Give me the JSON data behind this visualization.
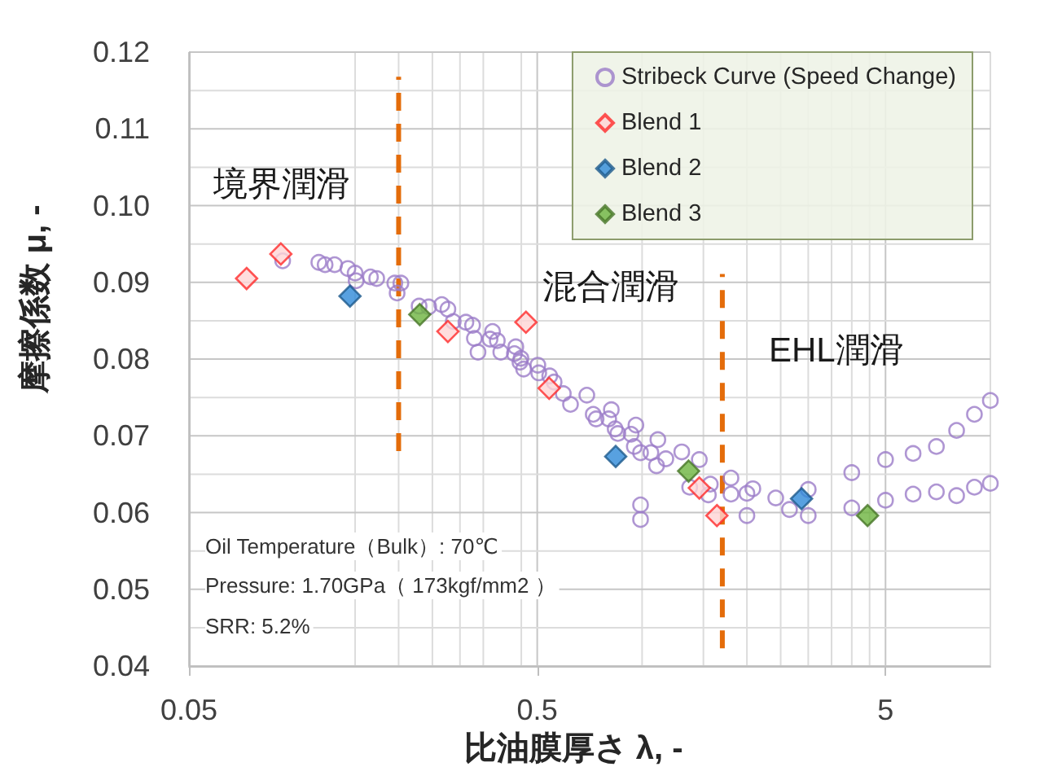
{
  "chart_data": {
    "type": "scatter",
    "xlabel": "比油膜厚さ λ, -",
    "ylabel": "摩擦係数 μ, -",
    "log": "x",
    "grid": true,
    "legend": "top right",
    "xlim": [
      0.05,
      10
    ],
    "xticks": [
      0.05,
      {
        "value": 0.15,
        "label": null
      },
      {
        "value": 0.2,
        "label": null
      },
      {
        "value": 0.25,
        "label": null
      },
      {
        "value": 0.3,
        "label": null
      },
      {
        "value": 0.35,
        "label": null
      },
      {
        "value": 0.45,
        "label": null
      },
      0.5,
      {
        "value": 1,
        "label": null
      },
      {
        "value": 1.5,
        "label": null
      },
      {
        "value": 2,
        "label": null
      },
      {
        "value": 2.5,
        "label": null
      },
      {
        "value": 3,
        "label": null
      },
      {
        "value": 3.5,
        "label": null
      },
      {
        "value": 4,
        "label": null
      },
      {
        "value": 4.5,
        "label": null
      },
      5,
      {
        "value": 10,
        "label": null
      }
    ],
    "ylim": [
      0.04,
      0.12
    ],
    "yticks": [
      0.04,
      {
        "value": 0.045,
        "label": null
      },
      0.05,
      {
        "value": 0.055,
        "label": null
      },
      0.06,
      {
        "value": 0.065,
        "label": null
      },
      0.07,
      {
        "value": 0.075,
        "label": null
      },
      0.08,
      {
        "value": 0.085,
        "label": null
      },
      0.09,
      {
        "value": 0.095,
        "label": null
      },
      {
        "value": 0.1,
        "label": "0.10"
      },
      {
        "value": 0.105,
        "label": null
      },
      0.11,
      {
        "value": 0.115,
        "label": null
      },
      0.12
    ],
    "annotations": [
      "境界潤滑",
      "混合潤滑",
      "EHL潤滑",
      "Oil Temperature（Bulk）: 70℃",
      "Pressure: 1.70GPa（ 173kgf/mm2 ）",
      "SRR: 5.2%"
    ],
    "series": [
      {
        "name": "Stribeck Curve (Speed Change)",
        "marker": "circle",
        "color": "#9b7cc8",
        "x": [
          0.0929,
          0.118,
          0.123,
          0.131,
          0.143,
          0.15,
          0.151,
          0.166,
          0.173,
          0.195,
          0.203,
          0.198,
          0.229,
          0.244,
          0.266,
          0.277,
          0.287,
          0.312,
          0.326,
          0.33,
          0.338,
          0.372,
          0.366,
          0.384,
          0.393,
          0.434,
          0.43,
          0.449,
          0.446,
          0.457,
          0.502,
          0.505,
          0.543,
          0.559,
          0.594,
          0.623,
          0.694,
          0.724,
          0.738,
          0.816,
          0.837,
          0.802,
          0.852,
          0.96,
          0.93,
          0.95,
          0.99,
          0.99,
          0.99,
          1.06,
          1.11,
          1.1,
          1.17,
          1.3,
          1.46,
          1.37,
          1.57,
          1.55,
          1.8,
          1.8,
          2.0,
          2.08,
          2.0,
          2.42,
          2.65,
          3.0,
          3.0,
          4.0,
          4.0,
          5.0,
          5.0,
          6.0,
          6.0,
          7.0,
          7.0,
          8.0,
          8.0,
          9.0,
          9.0,
          10,
          10
        ],
        "values": [
          0.0928,
          0.0926,
          0.0923,
          0.0923,
          0.0918,
          0.0912,
          0.0902,
          0.0907,
          0.0905,
          0.0899,
          0.0899,
          0.0886,
          0.0869,
          0.0868,
          0.0871,
          0.0865,
          0.0849,
          0.0848,
          0.0844,
          0.0827,
          0.0809,
          0.0836,
          0.0826,
          0.0824,
          0.0809,
          0.0816,
          0.0807,
          0.0801,
          0.0796,
          0.0787,
          0.0792,
          0.0782,
          0.0778,
          0.077,
          0.0755,
          0.0741,
          0.0753,
          0.0728,
          0.0722,
          0.0734,
          0.0709,
          0.0722,
          0.0703,
          0.0714,
          0.0702,
          0.0686,
          0.0678,
          0.061,
          0.0591,
          0.0678,
          0.0695,
          0.0661,
          0.067,
          0.0679,
          0.0669,
          0.0633,
          0.0637,
          0.0623,
          0.0645,
          0.0624,
          0.0625,
          0.0631,
          0.0596,
          0.0619,
          0.0604,
          0.063,
          0.0596,
          0.0652,
          0.0606,
          0.0669,
          0.0616,
          0.0677,
          0.0624,
          0.0686,
          0.0627,
          0.0707,
          0.0622,
          0.0728,
          0.0633,
          0.0746,
          0.0638
        ]
      },
      {
        "name": "Blend 1",
        "marker": "diamond",
        "color": "#ff2b2b",
        "x": [
          0.0732,
          0.0918,
          0.277,
          0.464,
          0.541,
          1.46,
          1.64
        ],
        "values": [
          0.0905,
          0.0937,
          0.0836,
          0.0848,
          0.0762,
          0.0632,
          0.0596
        ]
      },
      {
        "name": "Blend 2",
        "marker": "diamond",
        "color": "#2e8ad8",
        "x": [
          0.145,
          0.84,
          2.87
        ],
        "values": [
          0.0882,
          0.0673,
          0.0618
        ]
      },
      {
        "name": "Blend 3",
        "marker": "diamond",
        "color": "#6db43e",
        "x": [
          0.23,
          1.36,
          4.44
        ],
        "values": [
          0.0858,
          0.0654,
          0.0596
        ]
      },
      {
        "type": "line",
        "marker": "none",
        "line_style": "dashed",
        "color": "#e46c0a",
        "x": [
          0.2,
          0.2
        ],
        "values": [
          0.068,
          0.1168
        ]
      },
      {
        "type": "line",
        "marker": "none",
        "line_style": "dashed",
        "color": "#e46c0a",
        "x": [
          1.7,
          1.7
        ],
        "values": [
          0.0423,
          0.0911
        ]
      }
    ]
  }
}
